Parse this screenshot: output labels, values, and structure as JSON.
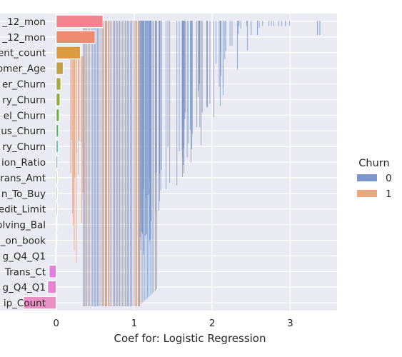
{
  "chart_data": {
    "type": "bar",
    "orientation": "horizontal",
    "xlabel": "Coef for: Logistic Regression",
    "ylabel": "",
    "xlim": [
      -0.72,
      3.6
    ],
    "xticks": [
      0,
      1,
      2,
      3
    ],
    "grid": true,
    "categories": [
      "_12_mon",
      "_12_mon",
      "ent_count",
      "omer_Age",
      "er_Churn",
      "ry_Churn",
      "el_Churn",
      "us_Churn",
      "ry_Churn",
      "ion_Ratio",
      "rans_Amt",
      "n_To_Buy",
      "edit_Limit",
      "olving_Bal",
      "_on_book",
      "g_Q4_Q1",
      "Trans_Ct",
      "g_Q4_Q1",
      "ip_Count"
    ],
    "values": [
      0.6,
      0.5,
      0.31,
      0.09,
      0.06,
      0.05,
      0.04,
      0.03,
      0.025,
      0.02,
      0.015,
      0.015,
      0.015,
      0.01,
      0.005,
      -0.01,
      -0.09,
      -0.11,
      -0.42
    ],
    "bar_colors": [
      "#f0858f",
      "#ee8a6f",
      "#dd9a3e",
      "#c0a040",
      "#a8a83c",
      "#8fae3c",
      "#6cb440",
      "#48b76a",
      "#3fb495",
      "#3cb0a8",
      "#3eaeb6",
      "#42abc4",
      "#4aa6d4",
      "#7a9ae6",
      "#a88fec",
      "#c784ec",
      "#e07ce4",
      "#e982d2",
      "#ec8fc4"
    ],
    "legend": {
      "title": "Churn",
      "placement": "outside-right",
      "entries": [
        {
          "label": "0",
          "color": "#7b97cb"
        },
        {
          "label": "1",
          "color": "#eba57f"
        }
      ]
    },
    "overlay": {
      "description_free": true,
      "churn0_color": "#7b97cb",
      "churn1_color": "#eba57f",
      "churn0_x_range": [
        0.35,
        3.4
      ],
      "churn1_x_range": [
        0.3,
        2.3
      ]
    }
  }
}
